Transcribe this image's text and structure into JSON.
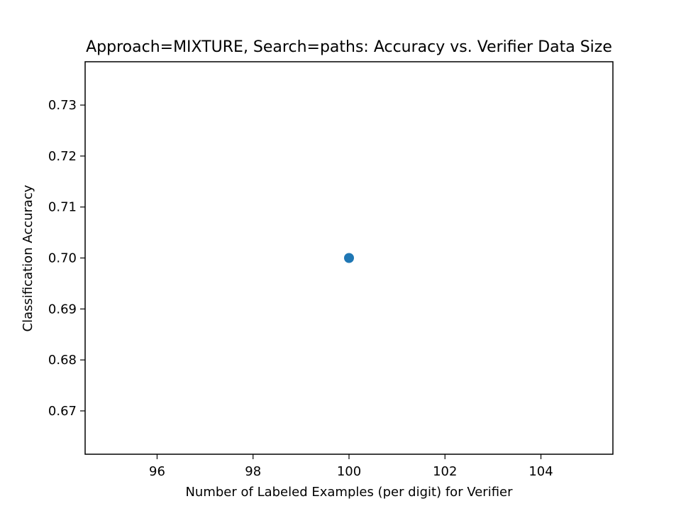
{
  "chart_data": {
    "type": "scatter",
    "title": "Approach=MIXTURE, Search=paths: Accuracy vs. Verifier Data Size",
    "xlabel": "Number of Labeled Examples (per digit) for Verifier",
    "ylabel": "Classification Accuracy",
    "xlim": [
      94.5,
      105.5
    ],
    "ylim": [
      0.6615,
      0.7385
    ],
    "xticks": [
      96,
      98,
      100,
      102,
      104
    ],
    "yticks": [
      0.67,
      0.68,
      0.69,
      0.7,
      0.71,
      0.72,
      0.73
    ],
    "xtick_labels": [
      "96",
      "98",
      "100",
      "102",
      "104"
    ],
    "ytick_labels": [
      "0.67",
      "0.68",
      "0.69",
      "0.70",
      "0.71",
      "0.72",
      "0.73"
    ],
    "grid": false,
    "series": [
      {
        "x": [
          100
        ],
        "y": [
          0.7
        ],
        "color": "#1f77b4"
      }
    ]
  }
}
